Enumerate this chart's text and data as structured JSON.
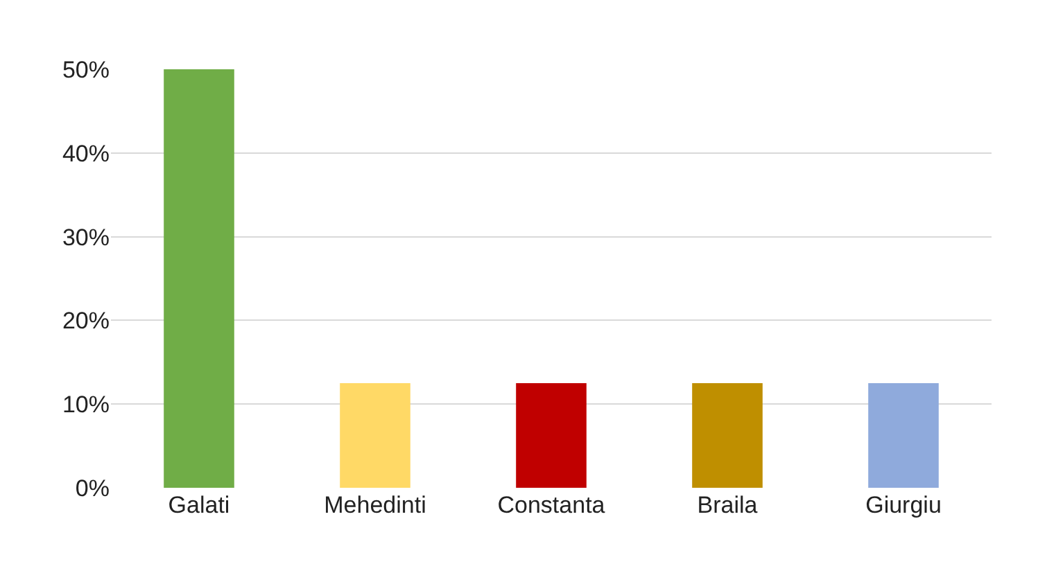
{
  "chart_data": {
    "type": "bar",
    "categories": [
      "Galati",
      "Mehedinti",
      "Constanta",
      "Braila",
      "Giurgiu"
    ],
    "values": [
      50,
      12.5,
      12.5,
      12.5,
      12.5
    ],
    "colors": [
      "#70ad47",
      "#ffd966",
      "#c00000",
      "#bf8f00",
      "#8faadc"
    ],
    "ylim": [
      0,
      50
    ],
    "yticks": [
      {
        "value": 0,
        "label": "0%"
      },
      {
        "value": 10,
        "label": "10%"
      },
      {
        "value": 20,
        "label": "20%"
      },
      {
        "value": 30,
        "label": "30%"
      },
      {
        "value": 40,
        "label": "40%"
      },
      {
        "value": 50,
        "label": "50%"
      }
    ],
    "grid": "y"
  }
}
